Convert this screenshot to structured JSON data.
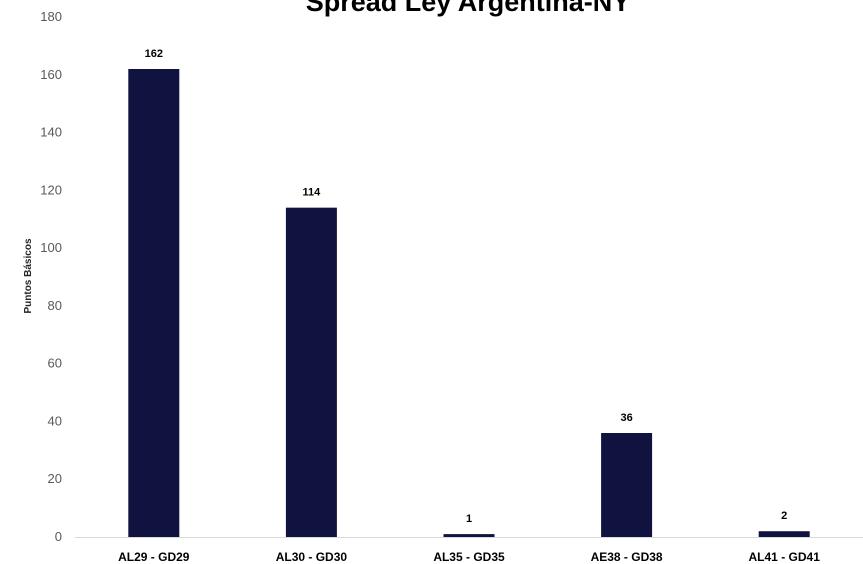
{
  "chart_data": {
    "type": "bar",
    "title": "Spread Ley Argentina-NY",
    "xlabel": "",
    "ylabel": "Puntos Básicos",
    "categories": [
      "AL29 - GD29",
      "AL30 - GD30",
      "AL35 - GD35",
      "AE38 - GD38",
      "AL41 - GD41"
    ],
    "values": [
      162,
      114,
      1,
      36,
      2
    ],
    "data_labels": [
      "162",
      "114",
      "1",
      "36",
      "2"
    ],
    "ylim": [
      0,
      180
    ],
    "yticks": [
      0,
      20,
      40,
      60,
      80,
      100,
      120,
      140,
      160,
      180
    ],
    "grid": false,
    "legend": "none",
    "bar_color": "#10133f"
  }
}
